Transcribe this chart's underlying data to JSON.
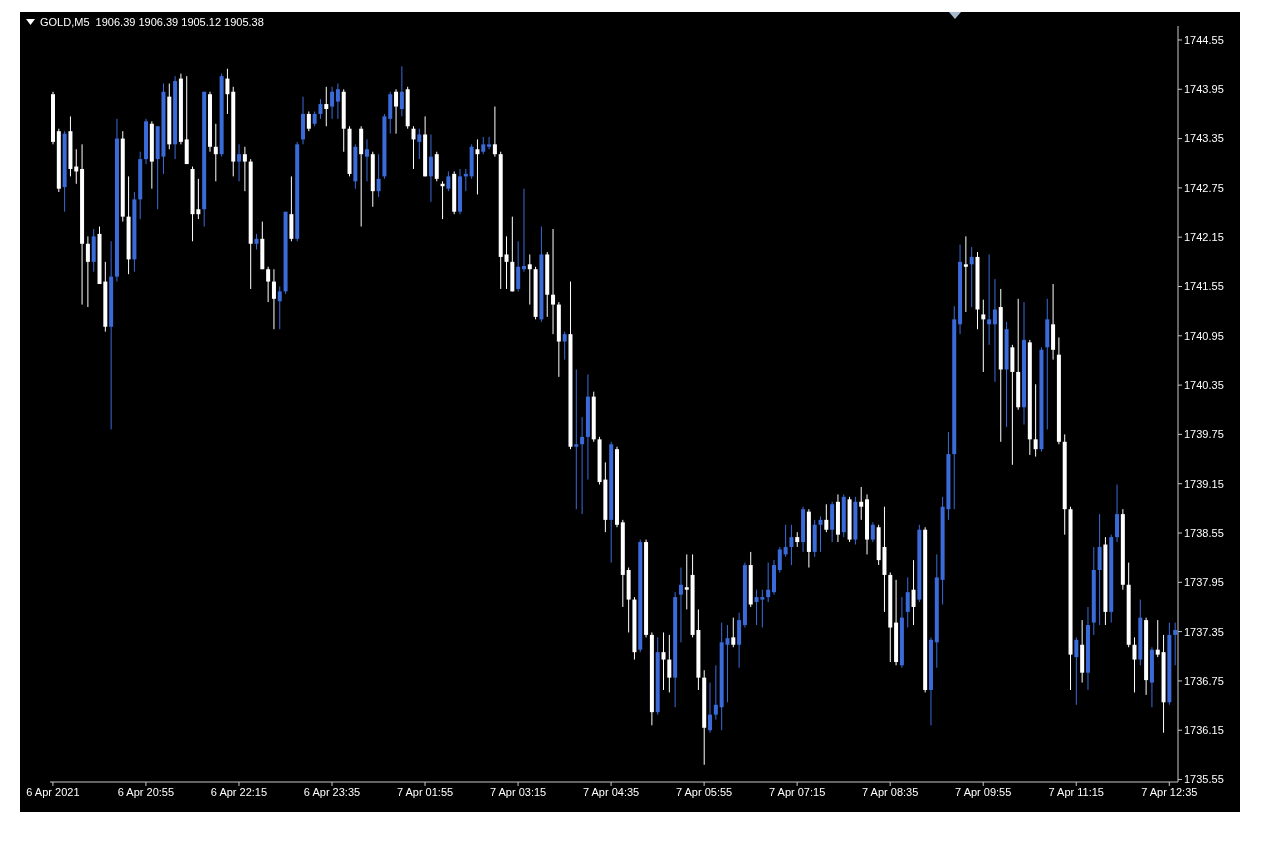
{
  "chart_data": {
    "type": "candlestick",
    "title": "GOLD,M5  1906.39 1906.39 1905.12 1905.38",
    "categories": [
      "6 Apr 2021",
      null,
      null,
      null,
      null,
      null,
      null,
      null,
      null,
      null,
      null,
      null,
      null,
      null,
      null,
      null,
      "6 Apr 20:55",
      null,
      null,
      null,
      null,
      null,
      null,
      null,
      null,
      null,
      null,
      null,
      null,
      null,
      null,
      null,
      "6 Apr 22:15",
      null,
      null,
      null,
      null,
      null,
      null,
      null,
      null,
      null,
      null,
      null,
      null,
      null,
      null,
      null,
      "6 Apr 23:35",
      null,
      null,
      null,
      null,
      null,
      null,
      null,
      null,
      null,
      null,
      null,
      null,
      null,
      null,
      null,
      "7 Apr 01:55",
      null,
      null,
      null,
      null,
      null,
      null,
      null,
      null,
      null,
      null,
      null,
      null,
      null,
      null,
      null,
      "7 Apr 03:15",
      null,
      null,
      null,
      null,
      null,
      null,
      null,
      null,
      null,
      null,
      null,
      null,
      null,
      null,
      null,
      "7 Apr 04:35",
      null,
      null,
      null,
      null,
      null,
      null,
      null,
      null,
      null,
      null,
      null,
      null,
      null,
      null,
      null,
      "7 Apr 05:55",
      null,
      null,
      null,
      null,
      null,
      null,
      null,
      null,
      null,
      null,
      null,
      null,
      null,
      null,
      null,
      "7 Apr 07:15",
      null,
      null,
      null,
      null,
      null,
      null,
      null,
      null,
      null,
      null,
      null,
      null,
      null,
      null,
      null,
      "7 Apr 08:35",
      null,
      null,
      null,
      null,
      null,
      null,
      null,
      null,
      null,
      null,
      null,
      null,
      null,
      null,
      null,
      "7 Apr 09:55",
      null,
      null,
      null,
      null,
      null,
      null,
      null,
      null,
      null,
      null,
      null,
      null,
      null,
      null,
      null,
      "7 Apr 11:15",
      null,
      null,
      null,
      null,
      null,
      null,
      null,
      null,
      null,
      null,
      null,
      null,
      null,
      null,
      null,
      "7 Apr 12:35",
      null
    ],
    "ohlc": [
      [
        1743.89,
        1743.92,
        1743.28,
        1743.31
      ],
      [
        1743.44,
        1743.47,
        1742.7,
        1742.74
      ],
      [
        1742.76,
        1743.44,
        1742.46,
        1743.41
      ],
      [
        1743.44,
        1743.62,
        1742.89,
        1742.98
      ],
      [
        1743.01,
        1743.22,
        1742.8,
        1742.95
      ],
      [
        1742.98,
        1743.28,
        1741.33,
        1742.07
      ],
      [
        1742.07,
        1742.16,
        1741.3,
        1741.85
      ],
      [
        1741.85,
        1742.25,
        1741.73,
        1742.16
      ],
      [
        1742.19,
        1742.28,
        1741.58,
        1741.58
      ],
      [
        1741.61,
        1741.85,
        1741.0,
        1741.06
      ],
      [
        1741.06,
        1742.1,
        1739.81,
        1741.67
      ],
      [
        1741.67,
        1743.59,
        1741.61,
        1743.35
      ],
      [
        1743.35,
        1743.44,
        1742.34,
        1742.4
      ],
      [
        1742.4,
        1742.89,
        1741.7,
        1741.88
      ],
      [
        1741.88,
        1742.7,
        1741.73,
        1742.61
      ],
      [
        1742.61,
        1743.19,
        1742.37,
        1743.1
      ],
      [
        1743.1,
        1743.59,
        1743.04,
        1743.56
      ],
      [
        1743.53,
        1743.56,
        1742.74,
        1743.07
      ],
      [
        1743.1,
        1743.5,
        1742.49,
        1743.5
      ],
      [
        1743.13,
        1744.02,
        1742.92,
        1743.92
      ],
      [
        1743.86,
        1744.02,
        1743.22,
        1743.28
      ],
      [
        1743.28,
        1744.11,
        1743.1,
        1744.05
      ],
      [
        1744.08,
        1744.14,
        1743.28,
        1743.31
      ],
      [
        1743.34,
        1744.11,
        1743.04,
        1743.04
      ],
      [
        1742.98,
        1743.01,
        1742.1,
        1742.43
      ],
      [
        1742.49,
        1742.86,
        1742.37,
        1742.43
      ],
      [
        1742.49,
        1743.92,
        1742.28,
        1743.92
      ],
      [
        1743.89,
        1743.92,
        1743.19,
        1743.25
      ],
      [
        1743.25,
        1743.53,
        1742.83,
        1743.16
      ],
      [
        1743.16,
        1744.14,
        1743.13,
        1744.11
      ],
      [
        1744.08,
        1744.2,
        1743.65,
        1743.89
      ],
      [
        1743.92,
        1743.98,
        1742.89,
        1743.07
      ],
      [
        1743.07,
        1743.28,
        1742.83,
        1743.16
      ],
      [
        1743.16,
        1743.25,
        1742.71,
        1743.07
      ],
      [
        1743.07,
        1743.1,
        1741.52,
        1742.07
      ],
      [
        1742.07,
        1742.19,
        1742.0,
        1742.13
      ],
      [
        1742.13,
        1742.34,
        1741.76,
        1741.76
      ],
      [
        1741.76,
        1741.79,
        1741.36,
        1741.61
      ],
      [
        1741.61,
        1741.76,
        1741.03,
        1741.4
      ],
      [
        1741.37,
        1741.55,
        1741.03,
        1741.49
      ],
      [
        1741.49,
        1742.46,
        1741.46,
        1742.46
      ],
      [
        1742.43,
        1742.89,
        1742.1,
        1742.13
      ],
      [
        1742.13,
        1743.31,
        1742.1,
        1743.28
      ],
      [
        1743.34,
        1743.86,
        1743.28,
        1743.65
      ],
      [
        1743.65,
        1743.68,
        1743.44,
        1743.47
      ],
      [
        1743.53,
        1743.68,
        1743.5,
        1743.65
      ],
      [
        1743.65,
        1743.83,
        1743.59,
        1743.77
      ],
      [
        1743.77,
        1743.98,
        1743.5,
        1743.71
      ],
      [
        1743.74,
        1743.98,
        1743.59,
        1743.92
      ],
      [
        1743.8,
        1744.02,
        1743.59,
        1743.95
      ],
      [
        1743.92,
        1743.95,
        1743.19,
        1743.47
      ],
      [
        1743.47,
        1743.5,
        1742.89,
        1742.92
      ],
      [
        1742.83,
        1743.28,
        1742.74,
        1743.25
      ],
      [
        1743.47,
        1743.5,
        1742.28,
        1743.16
      ],
      [
        1743.13,
        1743.34,
        1742.83,
        1743.22
      ],
      [
        1743.16,
        1743.19,
        1742.52,
        1742.71
      ],
      [
        1742.71,
        1743.16,
        1742.64,
        1742.86
      ],
      [
        1742.89,
        1743.65,
        1742.86,
        1743.62
      ],
      [
        1743.59,
        1743.92,
        1743.41,
        1743.89
      ],
      [
        1743.92,
        1743.95,
        1743.41,
        1743.74
      ],
      [
        1743.71,
        1744.23,
        1743.62,
        1743.92
      ],
      [
        1743.95,
        1743.98,
        1743.47,
        1743.5
      ],
      [
        1743.47,
        1743.5,
        1742.98,
        1743.34
      ],
      [
        1743.31,
        1743.47,
        1743.1,
        1743.4
      ],
      [
        1743.4,
        1743.62,
        1742.89,
        1742.89
      ],
      [
        1742.89,
        1743.4,
        1742.58,
        1743.13
      ],
      [
        1743.16,
        1743.19,
        1742.83,
        1742.86
      ],
      [
        1742.8,
        1742.83,
        1742.37,
        1742.77
      ],
      [
        1742.74,
        1742.95,
        1742.71,
        1742.89
      ],
      [
        1742.92,
        1742.95,
        1742.43,
        1742.46
      ],
      [
        1742.46,
        1742.98,
        1742.43,
        1742.89
      ],
      [
        1742.89,
        1742.98,
        1742.71,
        1742.92
      ],
      [
        1742.89,
        1743.28,
        1742.86,
        1743.25
      ],
      [
        1743.22,
        1743.34,
        1742.67,
        1743.16
      ],
      [
        1743.19,
        1743.37,
        1743.16,
        1743.28
      ],
      [
        1743.25,
        1743.37,
        1743.22,
        1743.28
      ],
      [
        1743.28,
        1743.74,
        1743.13,
        1743.16
      ],
      [
        1743.16,
        1743.19,
        1741.52,
        1741.91
      ],
      [
        1741.94,
        1742.16,
        1741.52,
        1741.85
      ],
      [
        1741.85,
        1742.4,
        1741.49,
        1741.49
      ],
      [
        1741.52,
        1742.1,
        1741.49,
        1741.79
      ],
      [
        1741.76,
        1742.74,
        1741.73,
        1741.8
      ],
      [
        1741.82,
        1741.94,
        1741.33,
        1741.76
      ],
      [
        1741.76,
        1741.79,
        1741.15,
        1741.18
      ],
      [
        1741.15,
        1742.28,
        1741.12,
        1741.94
      ],
      [
        1741.94,
        1741.97,
        1741.18,
        1741.45
      ],
      [
        1741.45,
        1742.25,
        1740.97,
        1741.33
      ],
      [
        1741.33,
        1741.36,
        1740.45,
        1740.88
      ],
      [
        1740.88,
        1741.0,
        1740.66,
        1740.97
      ],
      [
        1740.97,
        1741.61,
        1739.57,
        1739.6
      ],
      [
        1739.6,
        1740.54,
        1738.84,
        1739.63
      ],
      [
        1739.63,
        1739.96,
        1738.78,
        1739.72
      ],
      [
        1739.72,
        1740.48,
        1739.2,
        1740.21
      ],
      [
        1740.21,
        1740.27,
        1739.66,
        1739.69
      ],
      [
        1739.69,
        1739.72,
        1739.14,
        1739.17
      ],
      [
        1739.2,
        1739.41,
        1738.56,
        1738.71
      ],
      [
        1738.71,
        1739.66,
        1738.19,
        1739.63
      ],
      [
        1739.57,
        1739.6,
        1738.62,
        1738.65
      ],
      [
        1738.68,
        1738.71,
        1737.65,
        1738.04
      ],
      [
        1738.1,
        1738.13,
        1737.34,
        1737.74
      ],
      [
        1737.74,
        1737.77,
        1737.01,
        1737.1
      ],
      [
        1737.13,
        1738.47,
        1737.1,
        1738.44
      ],
      [
        1738.44,
        1738.47,
        1737.28,
        1737.31
      ],
      [
        1737.31,
        1737.34,
        1736.21,
        1736.37
      ],
      [
        1736.37,
        1737.28,
        1736.34,
        1737.1
      ],
      [
        1737.1,
        1737.34,
        1736.64,
        1737.01
      ],
      [
        1737.01,
        1737.31,
        1736.61,
        1736.79
      ],
      [
        1736.79,
        1737.83,
        1736.43,
        1737.77
      ],
      [
        1737.8,
        1738.13,
        1737.22,
        1737.92
      ],
      [
        1737.89,
        1738.29,
        1737.62,
        1737.86
      ],
      [
        1738.04,
        1738.29,
        1737.28,
        1737.31
      ],
      [
        1737.37,
        1737.62,
        1736.64,
        1736.79
      ],
      [
        1736.79,
        1736.88,
        1735.73,
        1736.18
      ],
      [
        1736.15,
        1736.73,
        1736.12,
        1736.34
      ],
      [
        1736.34,
        1736.94,
        1736.28,
        1736.46
      ],
      [
        1736.43,
        1737.46,
        1736.15,
        1737.22
      ],
      [
        1737.19,
        1737.43,
        1736.49,
        1737.27
      ],
      [
        1737.28,
        1737.52,
        1737.16,
        1737.19
      ],
      [
        1737.19,
        1737.58,
        1736.91,
        1737.49
      ],
      [
        1737.43,
        1738.19,
        1737.4,
        1738.16
      ],
      [
        1738.16,
        1738.32,
        1737.65,
        1737.68
      ],
      [
        1737.71,
        1737.86,
        1737.43,
        1737.77
      ],
      [
        1737.74,
        1737.86,
        1737.4,
        1737.77
      ],
      [
        1737.77,
        1738.19,
        1737.71,
        1737.86
      ],
      [
        1737.83,
        1738.22,
        1737.8,
        1738.16
      ],
      [
        1738.1,
        1738.38,
        1738.07,
        1738.35
      ],
      [
        1738.29,
        1738.65,
        1738.26,
        1738.38
      ],
      [
        1738.38,
        1738.65,
        1738.16,
        1738.5
      ],
      [
        1738.5,
        1738.56,
        1738.38,
        1738.44
      ],
      [
        1738.44,
        1738.87,
        1738.32,
        1738.84
      ],
      [
        1738.81,
        1738.84,
        1738.13,
        1738.32
      ],
      [
        1738.32,
        1738.71,
        1738.26,
        1738.65
      ],
      [
        1738.65,
        1738.75,
        1738.32,
        1738.71
      ],
      [
        1738.71,
        1738.9,
        1738.56,
        1738.59
      ],
      [
        1738.59,
        1738.93,
        1738.44,
        1738.9
      ],
      [
        1738.93,
        1739.02,
        1738.44,
        1738.53
      ],
      [
        1738.56,
        1739.02,
        1738.5,
        1738.99
      ],
      [
        1738.96,
        1738.99,
        1738.44,
        1738.47
      ],
      [
        1738.47,
        1738.99,
        1738.41,
        1738.93
      ],
      [
        1738.93,
        1739.11,
        1738.71,
        1738.87
      ],
      [
        1738.96,
        1739.02,
        1738.29,
        1738.47
      ],
      [
        1738.47,
        1738.68,
        1738.44,
        1738.65
      ],
      [
        1738.62,
        1738.65,
        1738.16,
        1738.22
      ],
      [
        1738.38,
        1738.87,
        1737.59,
        1738.04
      ],
      [
        1738.04,
        1738.07,
        1736.98,
        1737.4
      ],
      [
        1737.46,
        1737.98,
        1736.94,
        1736.98
      ],
      [
        1736.94,
        1737.77,
        1736.91,
        1737.52
      ],
      [
        1737.59,
        1738.01,
        1737.4,
        1737.83
      ],
      [
        1737.86,
        1738.22,
        1737.43,
        1737.65
      ],
      [
        1737.74,
        1738.65,
        1737.71,
        1738.59
      ],
      [
        1738.59,
        1738.62,
        1736.61,
        1736.64
      ],
      [
        1736.64,
        1737.28,
        1736.21,
        1737.25
      ],
      [
        1737.22,
        1738.29,
        1736.91,
        1738.01
      ],
      [
        1737.98,
        1738.99,
        1737.68,
        1738.87
      ],
      [
        1738.84,
        1739.78,
        1738.71,
        1739.51
      ],
      [
        1739.51,
        1741.31,
        1738.84,
        1741.15
      ],
      [
        1741.09,
        1742.06,
        1740.97,
        1741.85
      ],
      [
        1741.82,
        1742.16,
        1741.24,
        1741.79
      ],
      [
        1741.82,
        1742.03,
        1741.3,
        1741.91
      ],
      [
        1741.91,
        1741.97,
        1741.03,
        1741.27
      ],
      [
        1741.21,
        1741.39,
        1740.51,
        1741.15
      ],
      [
        1741.09,
        1741.94,
        1740.84,
        1741.15
      ],
      [
        1741.09,
        1741.64,
        1740.39,
        1741.27
      ],
      [
        1741.3,
        1741.52,
        1739.66,
        1740.54
      ],
      [
        1740.54,
        1741.12,
        1739.84,
        1741.03
      ],
      [
        1740.81,
        1740.84,
        1739.38,
        1740.51
      ],
      [
        1740.51,
        1741.4,
        1740.05,
        1740.08
      ],
      [
        1740.08,
        1741.36,
        1739.87,
        1740.9
      ],
      [
        1740.87,
        1740.9,
        1739.5,
        1739.69
      ],
      [
        1739.69,
        1740.36,
        1739.48,
        1739.57
      ],
      [
        1739.57,
        1740.81,
        1739.54,
        1740.78
      ],
      [
        1740.81,
        1741.4,
        1739.81,
        1741.15
      ],
      [
        1741.09,
        1741.58,
        1740.66,
        1740.78
      ],
      [
        1740.72,
        1740.93,
        1739.63,
        1739.66
      ],
      [
        1739.66,
        1739.75,
        1738.53,
        1738.84
      ],
      [
        1738.84,
        1738.87,
        1736.64,
        1737.07
      ],
      [
        1737.04,
        1737.28,
        1736.46,
        1737.25
      ],
      [
        1737.19,
        1737.49,
        1736.73,
        1736.85
      ],
      [
        1736.85,
        1737.65,
        1736.64,
        1737.43
      ],
      [
        1737.46,
        1738.38,
        1737.31,
        1738.1
      ],
      [
        1738.1,
        1738.78,
        1737.43,
        1738.38
      ],
      [
        1738.41,
        1738.5,
        1737.43,
        1737.59
      ],
      [
        1737.59,
        1738.53,
        1737.46,
        1738.5
      ],
      [
        1738.5,
        1739.14,
        1738.44,
        1738.78
      ],
      [
        1738.78,
        1738.84,
        1737.86,
        1737.92
      ],
      [
        1737.92,
        1738.19,
        1737.16,
        1737.19
      ],
      [
        1737.19,
        1737.28,
        1736.61,
        1737.01
      ],
      [
        1737.01,
        1737.74,
        1736.94,
        1737.52
      ],
      [
        1737.49,
        1737.52,
        1736.58,
        1736.76
      ],
      [
        1736.73,
        1737.16,
        1736.43,
        1737.13
      ],
      [
        1737.13,
        1737.49,
        1737.04,
        1737.07
      ],
      [
        1737.1,
        1737.31,
        1736.12,
        1736.49
      ],
      [
        1736.49,
        1737.46,
        1736.46,
        1737.31
      ],
      [
        1737.31,
        1737.46,
        1736.94,
        1737.37
      ]
    ],
    "colors": [
      "#ffffff",
      "#ffffff",
      "#3a6bd9",
      "#ffffff",
      "#ffffff",
      "#ffffff",
      "#ffffff",
      "#3a6bd9",
      "#ffffff",
      "#ffffff",
      "#3a6bd9",
      "#3a6bd9",
      "#ffffff",
      "#ffffff",
      "#3a6bd9",
      "#3a6bd9",
      "#3a6bd9",
      "#ffffff",
      "#3a6bd9",
      "#3a6bd9",
      "#ffffff",
      "#3a6bd9",
      "#ffffff",
      "#ffffff",
      "#ffffff",
      "#ffffff",
      "#3a6bd9",
      "#ffffff",
      "#ffffff",
      "#3a6bd9",
      "#ffffff",
      "#ffffff",
      "#3a6bd9",
      "#ffffff",
      "#ffffff",
      "#3a6bd9",
      "#ffffff",
      "#ffffff",
      "#ffffff",
      "#3a6bd9",
      "#3a6bd9",
      "#ffffff",
      "#3a6bd9",
      "#3a6bd9",
      "#ffffff",
      "#3a6bd9",
      "#3a6bd9",
      "#ffffff",
      "#3a6bd9",
      "#3a6bd9",
      "#ffffff",
      "#ffffff",
      "#3a6bd9",
      "#ffffff",
      "#3a6bd9",
      "#ffffff",
      "#3a6bd9",
      "#3a6bd9",
      "#3a6bd9",
      "#ffffff",
      "#3a6bd9",
      "#ffffff",
      "#ffffff",
      "#3a6bd9",
      "#ffffff",
      "#3a6bd9",
      "#ffffff",
      "#ffffff",
      "#3a6bd9",
      "#ffffff",
      "#3a6bd9",
      "#3a6bd9",
      "#3a6bd9",
      "#ffffff",
      "#3a6bd9",
      "#3a6bd9",
      "#ffffff",
      "#ffffff",
      "#ffffff",
      "#ffffff",
      "#3a6bd9",
      "#3a6bd9",
      "#ffffff",
      "#ffffff",
      "#3a6bd9",
      "#ffffff",
      "#ffffff",
      "#ffffff",
      "#3a6bd9",
      "#ffffff",
      "#3a6bd9",
      "#3a6bd9",
      "#3a6bd9",
      "#ffffff",
      "#ffffff",
      "#ffffff",
      "#3a6bd9",
      "#ffffff",
      "#ffffff",
      "#ffffff",
      "#ffffff",
      "#3a6bd9",
      "#ffffff",
      "#ffffff",
      "#3a6bd9",
      "#ffffff",
      "#ffffff",
      "#3a6bd9",
      "#3a6bd9",
      "#ffffff",
      "#ffffff",
      "#ffffff",
      "#ffffff",
      "#3a6bd9",
      "#3a6bd9",
      "#3a6bd9",
      "#3a6bd9",
      "#ffffff",
      "#3a6bd9",
      "#3a6bd9",
      "#ffffff",
      "#3a6bd9",
      "#3a6bd9",
      "#3a6bd9",
      "#3a6bd9",
      "#3a6bd9",
      "#3a6bd9",
      "#3a6bd9",
      "#ffffff",
      "#3a6bd9",
      "#ffffff",
      "#3a6bd9",
      "#3a6bd9",
      "#ffffff",
      "#3a6bd9",
      "#ffffff",
      "#3a6bd9",
      "#ffffff",
      "#3a6bd9",
      "#ffffff",
      "#ffffff",
      "#3a6bd9",
      "#ffffff",
      "#ffffff",
      "#ffffff",
      "#ffffff",
      "#3a6bd9",
      "#3a6bd9",
      "#ffffff",
      "#3a6bd9",
      "#ffffff",
      "#3a6bd9",
      "#3a6bd9",
      "#3a6bd9",
      "#3a6bd9",
      "#3a6bd9",
      "#3a6bd9",
      "#ffffff",
      "#3a6bd9",
      "#ffffff",
      "#ffffff",
      "#3a6bd9",
      "#3a6bd9",
      "#ffffff",
      "#3a6bd9",
      "#ffffff",
      "#ffffff",
      "#3a6bd9",
      "#ffffff",
      "#ffffff",
      "#3a6bd9",
      "#3a6bd9",
      "#ffffff",
      "#ffffff",
      "#ffffff",
      "#ffffff",
      "#3a6bd9",
      "#ffffff",
      "#3a6bd9",
      "#3a6bd9",
      "#3a6bd9",
      "#ffffff",
      "#3a6bd9",
      "#3a6bd9",
      "#ffffff",
      "#ffffff",
      "#ffffff",
      "#3a6bd9",
      "#ffffff",
      "#3a6bd9",
      "#ffffff",
      "#ffffff",
      "#3a6bd9",
      "#3a6bd9"
    ],
    "ylim": [
      1735.52,
      1744.72
    ],
    "yticks": [
      1735.55,
      1736.15,
      1736.75,
      1737.35,
      1737.95,
      1738.55,
      1739.15,
      1739.75,
      1740.35,
      1740.95,
      1741.55,
      1742.15,
      1742.75,
      1743.35,
      1743.95,
      1744.55
    ]
  }
}
